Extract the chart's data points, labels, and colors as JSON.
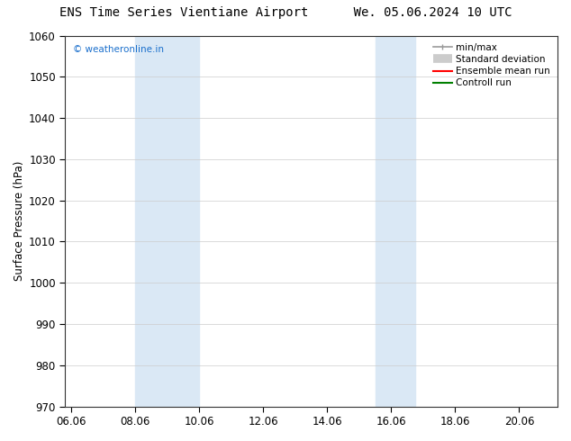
{
  "title_left": "ENS Time Series Vientiane Airport",
  "title_right": "We. 05.06.2024 10 UTC",
  "ylabel": "Surface Pressure (hPa)",
  "xlim": [
    5.8,
    21.2
  ],
  "ylim": [
    970,
    1060
  ],
  "yticks": [
    970,
    980,
    990,
    1000,
    1010,
    1020,
    1030,
    1040,
    1050,
    1060
  ],
  "xtick_labels": [
    "06.06",
    "08.06",
    "10.06",
    "12.06",
    "14.06",
    "16.06",
    "18.06",
    "20.06"
  ],
  "xtick_positions": [
    6.0,
    8.0,
    10.0,
    12.0,
    14.0,
    16.0,
    18.0,
    20.0
  ],
  "shaded_bands": [
    {
      "x_start": 8.0,
      "x_end": 10.0
    },
    {
      "x_start": 15.5,
      "x_end": 16.75
    }
  ],
  "shaded_color": "#dae8f5",
  "watermark_text": "© weatheronline.in",
  "watermark_color": "#1a6fcc",
  "legend_entries": [
    {
      "label": "min/max",
      "color": "#999999",
      "linewidth": 1.2
    },
    {
      "label": "Standard deviation",
      "color": "#cccccc",
      "linewidth": 7
    },
    {
      "label": "Ensemble mean run",
      "color": "red",
      "linewidth": 1.5
    },
    {
      "label": "Controll run",
      "color": "green",
      "linewidth": 1.5
    }
  ],
  "bg_color": "#ffffff",
  "grid_color": "#cccccc",
  "title_fontsize": 10,
  "label_fontsize": 8.5,
  "tick_fontsize": 8.5,
  "legend_fontsize": 7.5
}
